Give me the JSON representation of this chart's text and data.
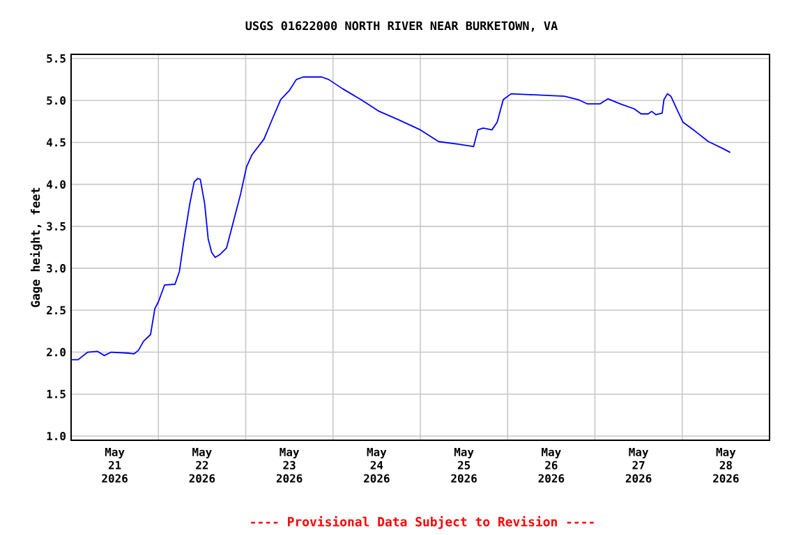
{
  "chart_data": {
    "type": "line",
    "title": "USGS 01622000 NORTH RIVER NEAR BURKETOWN, VA",
    "ylabel": "Gage height, feet",
    "annotations": [
      "---- Provisional Data Subject to Revision ----"
    ],
    "x": [
      "2026-05-21T00:00",
      "2026-05-21T01:55",
      "2026-05-21T04:34",
      "2026-05-21T07:12",
      "2026-05-21T09:07",
      "2026-05-21T11:02",
      "2026-05-21T15:22",
      "2026-05-21T17:17",
      "2026-05-21T18:29",
      "2026-05-21T19:55",
      "2026-05-21T21:50",
      "2026-05-21T23:02",
      "2026-05-22T00:00",
      "2026-05-22T01:41",
      "2026-05-22T04:34",
      "2026-05-22T05:46",
      "2026-05-22T06:58",
      "2026-05-22T08:38",
      "2026-05-22T09:50",
      "2026-05-22T10:48",
      "2026-05-22T11:31",
      "2026-05-22T12:43",
      "2026-05-22T13:41",
      "2026-05-22T14:38",
      "2026-05-22T15:36",
      "2026-05-22T16:48",
      "2026-05-22T18:43",
      "2026-05-22T20:24",
      "2026-05-22T22:34",
      "2026-05-23T00:14",
      "2026-05-23T01:41",
      "2026-05-23T05:02",
      "2026-05-23T07:26",
      "2026-05-23T09:36",
      "2026-05-23T12:00",
      "2026-05-23T13:55",
      "2026-05-23T15:50",
      "2026-05-23T20:53",
      "2026-05-23T22:48",
      "2026-05-24T02:38",
      "2026-05-24T07:41",
      "2026-05-24T12:43",
      "2026-05-24T18:00",
      "2026-05-25T00:00",
      "2026-05-25T05:02",
      "2026-05-25T10:19",
      "2026-05-25T14:38",
      "2026-05-25T15:50",
      "2026-05-25T17:17",
      "2026-05-25T19:41",
      "2026-05-25T21:07",
      "2026-05-25T22:48",
      "2026-05-26T00:58",
      "2026-05-26T06:00",
      "2026-05-26T15:36",
      "2026-05-26T19:26",
      "2026-05-26T21:50",
      "2026-05-27T01:26",
      "2026-05-27T03:36",
      "2026-05-27T06:58",
      "2026-05-27T10:48",
      "2026-05-27T12:43",
      "2026-05-27T14:38",
      "2026-05-27T15:36",
      "2026-05-27T16:48",
      "2026-05-27T18:29",
      "2026-05-27T18:58",
      "2026-05-27T19:55",
      "2026-05-27T20:53",
      "2026-05-27T22:48",
      "2026-05-28T00:14",
      "2026-05-28T03:22",
      "2026-05-28T07:12",
      "2026-05-28T11:02",
      "2026-05-28T13:12"
    ],
    "series": [
      {
        "color": "#0000ff",
        "values": [
          1.91,
          1.91,
          2.0,
          2.01,
          1.96,
          2.0,
          1.99,
          1.98,
          2.02,
          2.13,
          2.21,
          2.52,
          2.6,
          2.8,
          2.81,
          2.96,
          3.32,
          3.77,
          4.03,
          4.07,
          4.06,
          3.77,
          3.35,
          3.19,
          3.13,
          3.16,
          3.24,
          3.52,
          3.88,
          4.21,
          4.35,
          4.54,
          4.79,
          5.01,
          5.12,
          5.25,
          5.28,
          5.28,
          5.25,
          5.14,
          5.01,
          4.87,
          4.77,
          4.65,
          4.51,
          4.48,
          4.45,
          4.65,
          4.67,
          4.65,
          4.74,
          5.01,
          5.08,
          5.07,
          5.05,
          5.01,
          4.96,
          4.96,
          5.02,
          4.96,
          4.9,
          4.84,
          4.84,
          4.87,
          4.83,
          4.85,
          5.01,
          5.08,
          5.05,
          4.87,
          4.74,
          4.64,
          4.51,
          4.43,
          4.38
        ]
      }
    ],
    "xlim": [
      "2026-05-21",
      "2026-05-29"
    ],
    "xticks": [
      {
        "value": "2026-05-21T12:00",
        "label": "May 21 2026"
      },
      {
        "value": "2026-05-22T12:00",
        "label": "May 22 2026"
      },
      {
        "value": "2026-05-23T12:00",
        "label": "May 23 2026"
      },
      {
        "value": "2026-05-24T12:00",
        "label": "May 24 2026"
      },
      {
        "value": "2026-05-25T12:00",
        "label": "May 25 2026"
      },
      {
        "value": "2026-05-26T12:00",
        "label": "May 26 2026"
      },
      {
        "value": "2026-05-27T12:00",
        "label": "May 27 2026"
      },
      {
        "value": "2026-05-28T12:00",
        "label": "May 28 2026"
      },
      {
        "value": "2026-05-22",
        "label": null
      },
      {
        "value": "2026-05-23",
        "label": null
      },
      {
        "value": "2026-05-24",
        "label": null
      },
      {
        "value": "2026-05-25",
        "label": null
      },
      {
        "value": "2026-05-26",
        "label": null
      },
      {
        "value": "2026-05-27",
        "label": null
      },
      {
        "value": "2026-05-28",
        "label": null
      }
    ],
    "ylim": [
      0.95,
      5.55
    ],
    "yticks": [
      {
        "value": 1,
        "label": "1.0"
      },
      1.5,
      {
        "value": 2,
        "label": "2.0"
      },
      2.5,
      {
        "value": 3,
        "label": "3.0"
      },
      3.5,
      {
        "value": 4,
        "label": "4.0"
      },
      4.5,
      {
        "value": 5,
        "label": "5.0"
      },
      5.5
    ],
    "grid": true
  }
}
